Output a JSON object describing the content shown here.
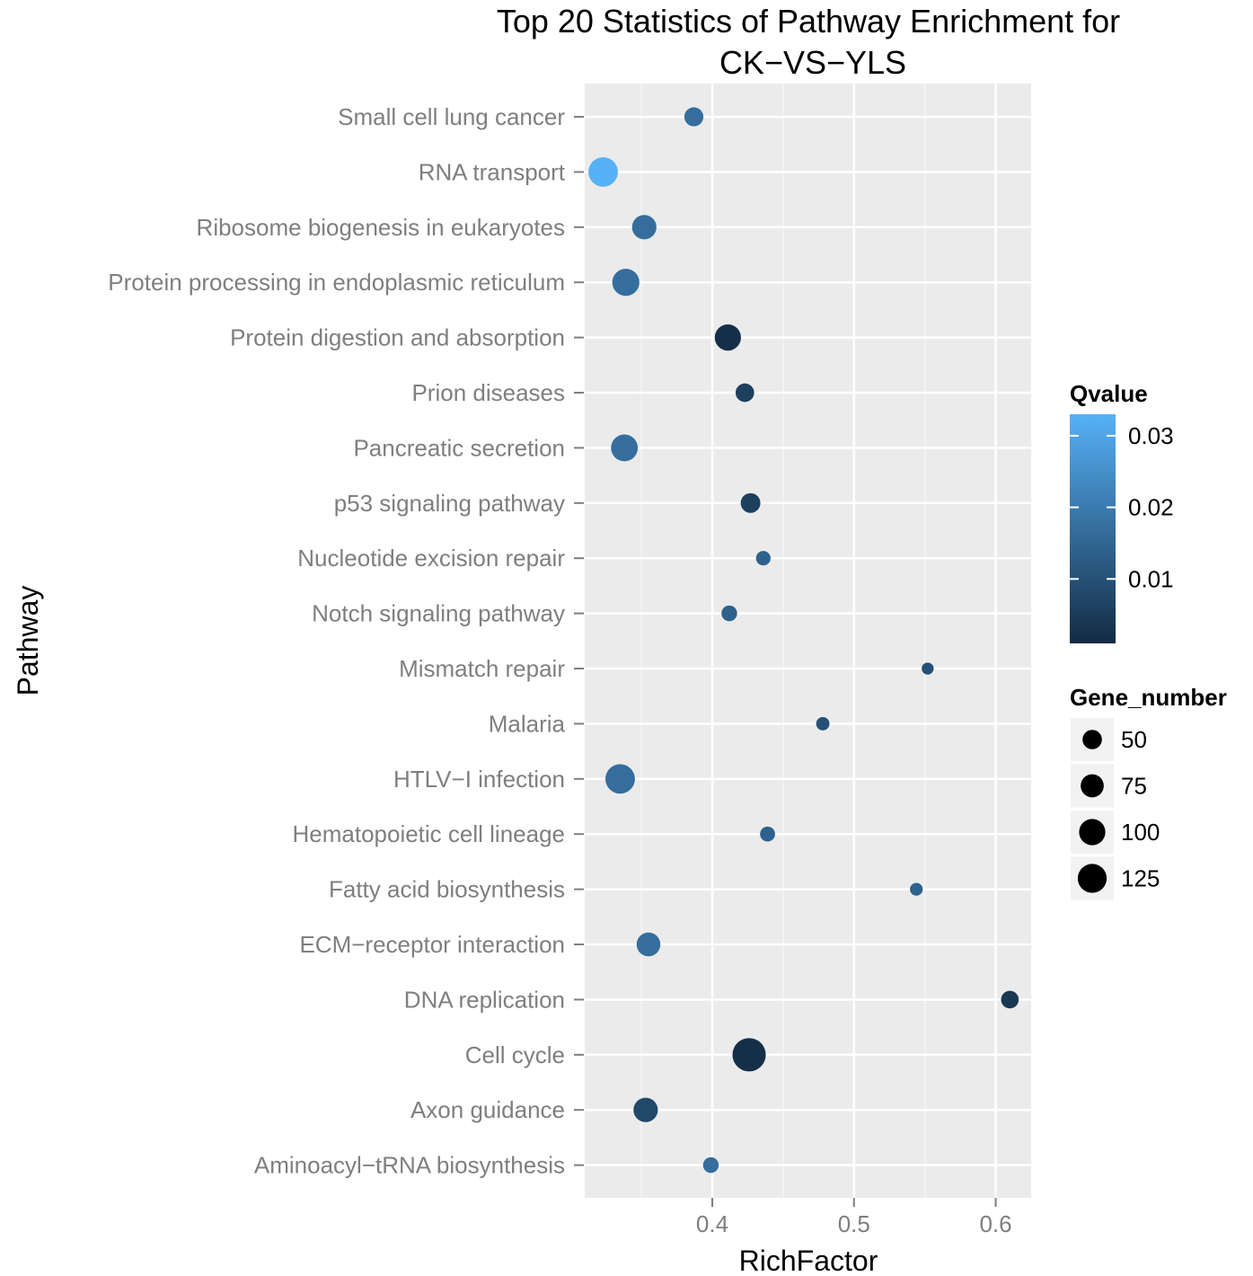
{
  "chart_data": {
    "type": "scatter",
    "title_lines": [
      "Top 20 Statistics of Pathway Enrichment for",
      "CK−VS−YLS"
    ],
    "xlabel": "RichFactor",
    "ylabel": "Pathway",
    "xlim": [
      0.31,
      0.625
    ],
    "xticks": [
      0.4,
      0.5,
      0.6
    ],
    "xtick_labels": [
      "0.4",
      "0.5",
      "0.6"
    ],
    "grid": true,
    "points": [
      {
        "pathway": "Small cell lung cancer",
        "rich_factor": 0.387,
        "gene_number": 48,
        "qvalue": 0.017
      },
      {
        "pathway": "RNA transport",
        "rich_factor": 0.323,
        "gene_number": 130,
        "qvalue": 0.033
      },
      {
        "pathway": "Ribosome biogenesis in eukaryotes",
        "rich_factor": 0.352,
        "gene_number": 85,
        "qvalue": 0.017
      },
      {
        "pathway": "Protein processing in endoplasmic reticulum",
        "rich_factor": 0.339,
        "gene_number": 108,
        "qvalue": 0.017
      },
      {
        "pathway": "Protein digestion and absorption",
        "rich_factor": 0.411,
        "gene_number": 100,
        "qvalue": 0.002
      },
      {
        "pathway": "Prion diseases",
        "rich_factor": 0.423,
        "gene_number": 45,
        "qvalue": 0.006
      },
      {
        "pathway": "Pancreatic secretion",
        "rich_factor": 0.338,
        "gene_number": 105,
        "qvalue": 0.017
      },
      {
        "pathway": "p53 signaling pathway",
        "rich_factor": 0.427,
        "gene_number": 52,
        "qvalue": 0.006
      },
      {
        "pathway": "Nucleotide excision repair",
        "rich_factor": 0.436,
        "gene_number": 25,
        "qvalue": 0.014
      },
      {
        "pathway": "Notch signaling pathway",
        "rich_factor": 0.412,
        "gene_number": 30,
        "qvalue": 0.014
      },
      {
        "pathway": "Mismatch repair",
        "rich_factor": 0.552,
        "gene_number": 15,
        "qvalue": 0.01
      },
      {
        "pathway": "Malaria",
        "rich_factor": 0.478,
        "gene_number": 20,
        "qvalue": 0.01
      },
      {
        "pathway": "HTLV−I infection",
        "rich_factor": 0.335,
        "gene_number": 130,
        "qvalue": 0.017
      },
      {
        "pathway": "Hematopoietic cell lineage",
        "rich_factor": 0.439,
        "gene_number": 27,
        "qvalue": 0.014
      },
      {
        "pathway": "Fatty acid biosynthesis",
        "rich_factor": 0.544,
        "gene_number": 18,
        "qvalue": 0.014
      },
      {
        "pathway": "ECM−receptor interaction",
        "rich_factor": 0.355,
        "gene_number": 80,
        "qvalue": 0.017
      },
      {
        "pathway": "DNA replication",
        "rich_factor": 0.61,
        "gene_number": 40,
        "qvalue": 0.004
      },
      {
        "pathway": "Cell cycle",
        "rich_factor": 0.426,
        "gene_number": 170,
        "qvalue": 0.002
      },
      {
        "pathway": "Axon guidance",
        "rich_factor": 0.353,
        "gene_number": 85,
        "qvalue": 0.008
      },
      {
        "pathway": "Aminoacyl−tRNA biosynthesis",
        "rich_factor": 0.399,
        "gene_number": 30,
        "qvalue": 0.017
      }
    ],
    "color_legend": {
      "title": "Qvalue",
      "range": [
        0.001,
        0.033
      ],
      "ticks": [
        0.03,
        0.02,
        0.01
      ],
      "tick_labels": [
        "0.03",
        "0.02",
        "0.01"
      ],
      "low_color": "#132B43",
      "high_color": "#56B1F7"
    },
    "size_legend": {
      "title": "Gene_number",
      "values": [
        50,
        75,
        100,
        125
      ],
      "labels": [
        "50",
        "75",
        "100",
        "125"
      ]
    },
    "legend_position": "right",
    "panel_background": "#EBEBEB",
    "grid_color": "#FFFFFF"
  }
}
